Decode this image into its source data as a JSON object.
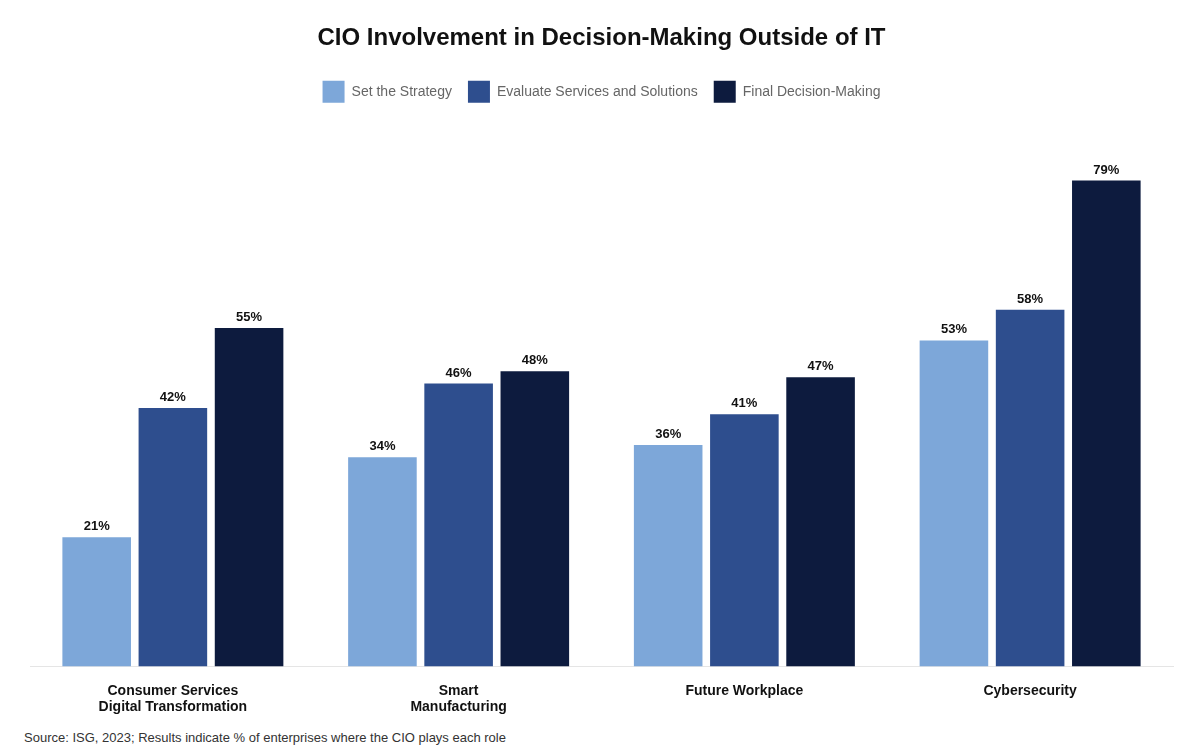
{
  "chart_data": {
    "type": "bar",
    "title": "CIO Involvement in Decision-Making Outside of IT",
    "categories": [
      "Consumer Services\nDigital Transformation",
      "Smart\nManufacturing",
      "Future Workplace",
      "Cybersecurity"
    ],
    "series": [
      {
        "name": "Set the Strategy",
        "color": "#7da7d9",
        "values": [
          21,
          34,
          36,
          53
        ],
        "value_labels": [
          "21%",
          "34%",
          "36%",
          "53%"
        ]
      },
      {
        "name": "Evaluate Services and Solutions",
        "color": "#2e4e8e",
        "values": [
          42,
          46,
          41,
          58
        ],
        "value_labels": [
          "42%",
          "46%",
          "41%",
          "58%"
        ]
      },
      {
        "name": "Final Decision-Making",
        "color": "#0d1b3e",
        "values": [
          55,
          48,
          47,
          79
        ],
        "value_labels": [
          "55%",
          "48%",
          "47%",
          "79%"
        ]
      }
    ],
    "ylim": [
      0,
      90
    ],
    "grid": false,
    "legend": "top",
    "data_labels": true,
    "tick_labels": "x",
    "annotations": [
      "Source: ISG, 2023; Results indicate % of enterprises where the CIO plays each role"
    ]
  }
}
